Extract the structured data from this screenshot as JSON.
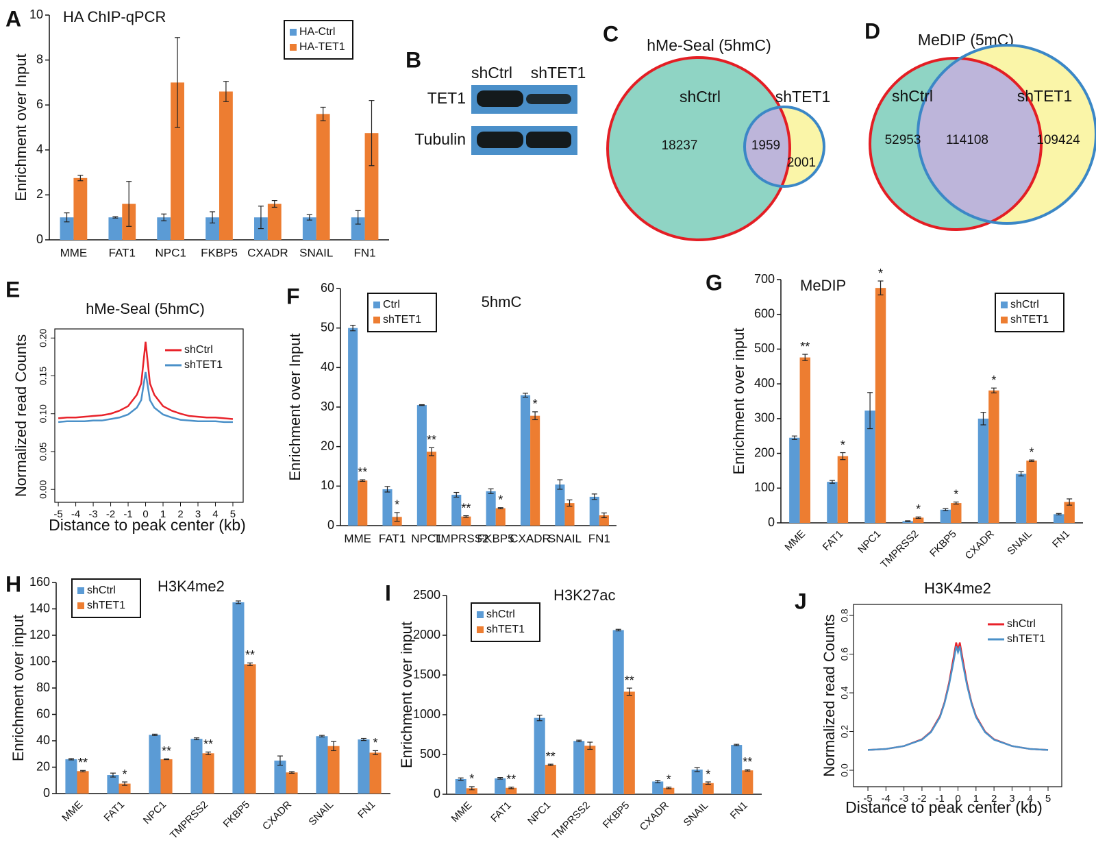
{
  "chart_data": [
    {
      "type": "bar",
      "panel": "A",
      "title": "HA ChIP-qPCR",
      "y_label": "Enrichment over Input",
      "categories": [
        "MME",
        "FAT1",
        "NPC1",
        "FKBP5",
        "CXADR",
        "SNAIL",
        "FN1"
      ],
      "series": [
        {
          "name": "HA-Ctrl",
          "color": "#5b9bd5",
          "values": [
            1,
            1,
            1,
            1,
            1,
            1,
            1
          ],
          "errors": [
            0.2,
            0.03,
            0.15,
            0.25,
            0.5,
            0.12,
            0.3
          ]
        },
        {
          "name": "HA-TET1",
          "color": "#ed7d31",
          "values": [
            2.75,
            1.6,
            7,
            6.6,
            1.6,
            5.6,
            4.75
          ],
          "errors": [
            0.12,
            1,
            2,
            0.45,
            0.15,
            0.3,
            1.45
          ]
        }
      ],
      "ylim": [
        0,
        10
      ],
      "yticks": [
        0,
        2,
        4,
        6,
        8,
        10
      ],
      "legend": "upper right"
    },
    {
      "type": "blot",
      "panel": "B",
      "columns": [
        "shCtrl",
        "shTET1"
      ],
      "rows": [
        "TET1",
        "Tubulin"
      ]
    },
    {
      "type": "venn",
      "panel": "C",
      "title": "hMe-Seal (5hmC)",
      "sets": [
        {
          "name": "shCtrl",
          "color": "#8fd4c4",
          "edge": "#e31e24"
        },
        {
          "name": "shTET1",
          "color": "#faf5a8",
          "edge": "#3b87c6"
        }
      ],
      "overlap_color": "#bdb5da",
      "values": [
        18237,
        1959,
        2001
      ]
    },
    {
      "type": "venn",
      "panel": "D",
      "title": "MeDIP (5mC)",
      "sets": [
        {
          "name": "shCtrl",
          "color": "#8fd4c4",
          "edge": "#e31e24"
        },
        {
          "name": "shTET1",
          "color": "#faf5a8",
          "edge": "#3b87c6"
        }
      ],
      "overlap_color": "#bdb5da",
      "values": [
        52953,
        114108,
        109424
      ]
    },
    {
      "type": "line",
      "panel": "E",
      "title": "hMe-Seal (5hmC)",
      "x_label": "Distance to peak center (kb)",
      "y_label": "Normalized read Counts",
      "x": [
        -5,
        -4.5,
        -4,
        -3.5,
        -3,
        -2.5,
        -2,
        -1.5,
        -1,
        -0.5,
        -0.25,
        0,
        0.25,
        0.5,
        1,
        1.5,
        2,
        2.5,
        3,
        3.5,
        4,
        4.5,
        5
      ],
      "series": [
        {
          "name": "shCtrl",
          "color": "#e8222a",
          "values": [
            0.094,
            0.095,
            0.095,
            0.096,
            0.097,
            0.098,
            0.1,
            0.104,
            0.11,
            0.125,
            0.14,
            0.195,
            0.14,
            0.125,
            0.11,
            0.104,
            0.1,
            0.097,
            0.096,
            0.095,
            0.095,
            0.094,
            0.093
          ]
        },
        {
          "name": "shTET1",
          "color": "#4a90c8",
          "values": [
            0.089,
            0.09,
            0.09,
            0.09,
            0.091,
            0.091,
            0.093,
            0.095,
            0.099,
            0.108,
            0.118,
            0.155,
            0.118,
            0.108,
            0.099,
            0.095,
            0.092,
            0.091,
            0.09,
            0.09,
            0.09,
            0.089,
            0.089
          ]
        }
      ],
      "xlim": [
        -5.2,
        5.59
      ],
      "xticks": [
        -5,
        -4,
        -3,
        -2,
        -1,
        0,
        1,
        2,
        3,
        4,
        5
      ],
      "ylim": [
        -0.017,
        0.212
      ],
      "yticks": [
        {
          "value": 0,
          "label": "0.00"
        },
        0.05,
        {
          "value": 0.1,
          "label": "0.10"
        },
        0.15,
        {
          "value": 0.2,
          "label": "0.20"
        }
      ],
      "legend": "upper right"
    },
    {
      "type": "bar",
      "panel": "F",
      "title": "5hmC",
      "y_label": "Enrichment over Input",
      "categories": [
        "MME",
        "FAT1",
        "NPC1",
        "TMPRSS2",
        "FKBP5",
        "CXADR",
        "SNAIL",
        "FN1"
      ],
      "series": [
        {
          "name": "Ctrl",
          "color": "#5b9bd5",
          "values": [
            50,
            9.2,
            30.5,
            7.8,
            8.7,
            33,
            10.4,
            7.3
          ],
          "errors": [
            0.7,
            0.7,
            0.1,
            0.6,
            0.6,
            0.5,
            1.2,
            0.7
          ]
        },
        {
          "name": "shTET1",
          "color": "#ed7d31",
          "values": [
            11.4,
            2.2,
            18.7,
            2.3,
            4.4,
            27.8,
            5.7,
            2.6
          ],
          "errors": [
            0.2,
            1.1,
            1,
            0.2,
            0.15,
            1,
            0.8,
            0.6
          ],
          "annotations": [
            "**",
            "*",
            "**",
            "**",
            "*",
            "*",
            null,
            null
          ]
        }
      ],
      "ylim": [
        0,
        60
      ],
      "yticks": [
        0,
        10,
        20,
        30,
        40,
        50,
        60
      ],
      "legend": "upper left"
    },
    {
      "type": "bar",
      "panel": "G",
      "title": "MeDIP",
      "y_label": "Enrichment over input",
      "xtick_rotation": -45,
      "categories": [
        "MME",
        "FAT1",
        "NPC1",
        "TMPRSS2",
        "FKBP5",
        "CXADR",
        "SNAIL",
        "FN1"
      ],
      "series": [
        {
          "name": "shCtrl",
          "color": "#5b9bd5",
          "values": [
            245,
            118,
            323,
            5,
            38,
            300,
            141,
            25
          ],
          "errors": [
            5,
            4,
            52,
            1,
            3,
            18,
            6,
            2
          ]
        },
        {
          "name": "shTET1",
          "color": "#ed7d31",
          "values": [
            476,
            192,
            676,
            15,
            57,
            381,
            179,
            60
          ],
          "errors": [
            9,
            10,
            20,
            2,
            3,
            7,
            2,
            9
          ],
          "annotations": [
            "**",
            "*",
            "*",
            "*",
            "*",
            "*",
            "*",
            null
          ]
        }
      ],
      "ylim": [
        0,
        700
      ],
      "yticks": [
        0,
        100,
        200,
        300,
        400,
        500,
        600,
        700
      ],
      "legend": "upper right"
    },
    {
      "type": "bar",
      "panel": "H",
      "title": "H3K4me2",
      "y_label": "Enrichment over input",
      "xtick_rotation": -45,
      "categories": [
        "MME",
        "FAT1",
        "NPC1",
        "TMPRSS2",
        "FKBP5",
        "CXADR",
        "SNAIL",
        "FN1"
      ],
      "series": [
        {
          "name": "shCtrl",
          "color": "#5b9bd5",
          "values": [
            26,
            14,
            44.5,
            41.5,
            145,
            25,
            43.5,
            41
          ],
          "errors": [
            0.5,
            1.5,
            0.5,
            0.7,
            1,
            3.5,
            0.6,
            0.8
          ]
        },
        {
          "name": "shTET1",
          "color": "#ed7d31",
          "values": [
            17,
            7.5,
            26,
            30.5,
            98,
            16,
            36,
            31
          ],
          "errors": [
            0.5,
            1.3,
            0.3,
            1,
            1,
            0.6,
            3.5,
            1.5
          ],
          "annotations": [
            "**",
            "*",
            "**",
            "**",
            "**",
            null,
            null,
            "*"
          ]
        }
      ],
      "ylim": [
        0,
        160
      ],
      "yticks": [
        0,
        20,
        40,
        60,
        80,
        100,
        120,
        140,
        160
      ],
      "legend": "upper left"
    },
    {
      "type": "bar",
      "panel": "I",
      "title": "H3K27ac",
      "y_label": "Enrichment over input",
      "xtick_rotation": -45,
      "categories": [
        "MME",
        "FAT1",
        "NPC1",
        "TMPRSS2",
        "FKBP5",
        "CXADR",
        "SNAIL",
        "FN1"
      ],
      "series": [
        {
          "name": "shCtrl",
          "color": "#5b9bd5",
          "values": [
            190,
            200,
            960,
            670,
            2065,
            160,
            310,
            620
          ],
          "errors": [
            15,
            10,
            35,
            10,
            10,
            15,
            25,
            8
          ]
        },
        {
          "name": "shTET1",
          "color": "#ed7d31",
          "values": [
            75,
            80,
            370,
            610,
            1290,
            80,
            140,
            300
          ],
          "errors": [
            20,
            10,
            8,
            45,
            45,
            10,
            15,
            8
          ],
          "annotations": [
            "*",
            "**",
            "**",
            null,
            "**",
            "*",
            "*",
            "**"
          ]
        }
      ],
      "ylim": [
        0,
        2500
      ],
      "yticks": [
        0,
        500,
        1000,
        1500,
        2000,
        2500
      ],
      "legend": "upper left"
    },
    {
      "type": "line",
      "panel": "J",
      "title": "H3K4me2",
      "x_label": "Distance to peak center (kb)",
      "y_label": "Normalized read Counts",
      "x": [
        -5,
        -4,
        -3,
        -2,
        -1.5,
        -1,
        -0.75,
        -0.5,
        -0.25,
        -0.1,
        0,
        0.1,
        0.25,
        0.5,
        0.75,
        1,
        1.5,
        2,
        3,
        4,
        5
      ],
      "series": [
        {
          "name": "shCtrl",
          "color": "#e8222a",
          "values": [
            0.105,
            0.11,
            0.125,
            0.16,
            0.2,
            0.28,
            0.35,
            0.45,
            0.58,
            0.66,
            0.62,
            0.66,
            0.58,
            0.45,
            0.35,
            0.28,
            0.2,
            0.16,
            0.125,
            0.11,
            0.105
          ]
        },
        {
          "name": "shTET1",
          "color": "#4a90c8",
          "values": [
            0.105,
            0.11,
            0.125,
            0.158,
            0.197,
            0.275,
            0.345,
            0.44,
            0.56,
            0.64,
            0.61,
            0.64,
            0.56,
            0.44,
            0.345,
            0.275,
            0.197,
            0.158,
            0.125,
            0.11,
            0.105
          ]
        }
      ],
      "xlim": [
        -5.8,
        5.76
      ],
      "xticks": [
        -5,
        -4,
        -3,
        -2,
        -1,
        0,
        1,
        2,
        3,
        4,
        5
      ],
      "ylim": [
        -0.085,
        0.857
      ],
      "yticks": [
        {
          "value": 0,
          "label": "0.0"
        },
        0.2,
        0.4,
        0.6,
        0.8
      ],
      "legend": "upper right"
    }
  ]
}
